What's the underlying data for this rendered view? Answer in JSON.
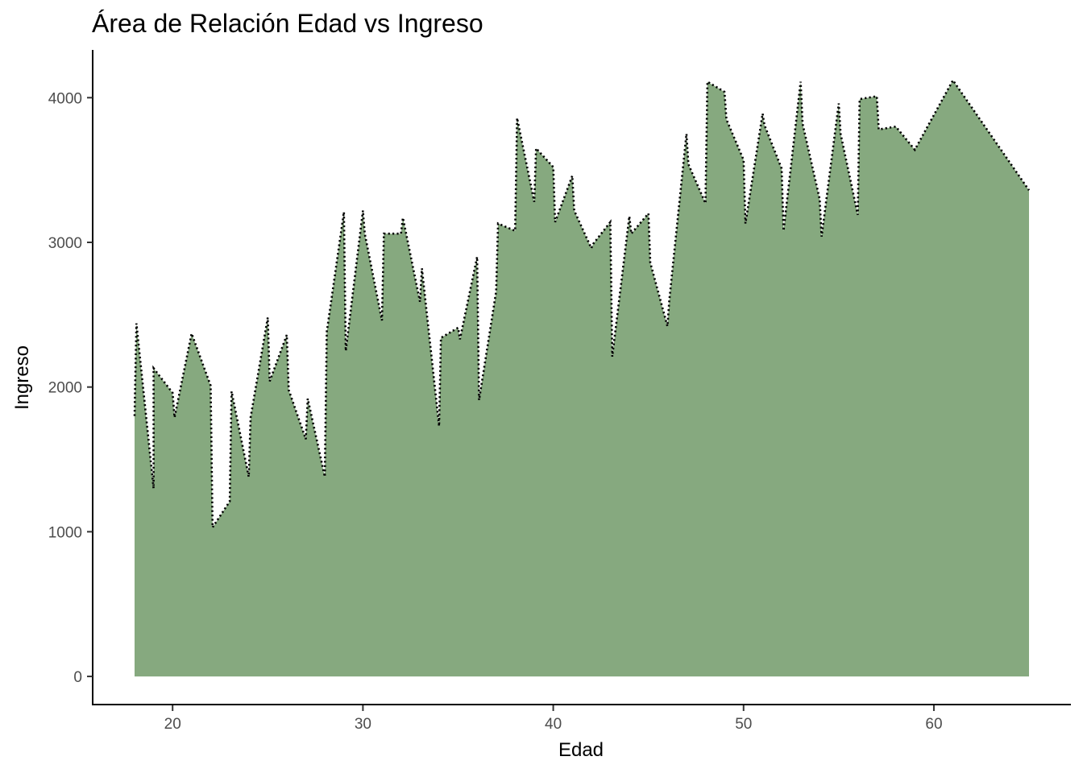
{
  "chart_data": {
    "type": "area",
    "title": "Área de Relación Edad vs Ingreso",
    "xlabel": "Edad",
    "ylabel": "Ingreso",
    "xlim": [
      15.8,
      67.2
    ],
    "ylim": [
      -200,
      4330
    ],
    "x_ticks": [
      20,
      30,
      40,
      50,
      60
    ],
    "y_ticks": [
      0,
      1000,
      2000,
      3000,
      4000
    ],
    "x_tick_labels": [
      "20",
      "30",
      "40",
      "50",
      "60"
    ],
    "y_tick_labels": [
      "0",
      "1000",
      "2000",
      "3000",
      "4000"
    ],
    "grid": false,
    "fill_color": "#86a97f",
    "line_color": "#000000",
    "line_style": "dotted",
    "series": [
      {
        "x": [
          18.0,
          18.1,
          19.0,
          19.0,
          20.0,
          20.1,
          21.0,
          22.0,
          22.1,
          23.0,
          23.1,
          24.0,
          24.1,
          25.0,
          25.1,
          26.0,
          26.1,
          27.0,
          27.1,
          28.0,
          28.1,
          29.0,
          29.1,
          30.0,
          30.1,
          31.0,
          31.1,
          32.0,
          32.1,
          33.0,
          33.1,
          34.0,
          34.1,
          35.0,
          35.1,
          36.0,
          36.1,
          37.0,
          37.1,
          38.0,
          38.1,
          39.0,
          39.1,
          40.0,
          40.1,
          41.0,
          41.1,
          42.0,
          42.1,
          43.0,
          43.1,
          44.0,
          44.1,
          45.0,
          45.1,
          46.0,
          46.1,
          47.0,
          47.1,
          48.0,
          48.1,
          49.0,
          49.1,
          50.0,
          50.1,
          51.0,
          51.1,
          52.0,
          52.1,
          53.0,
          53.1,
          54.0,
          54.1,
          55.0,
          55.1,
          56.0,
          56.1,
          57.0,
          57.1,
          58.0,
          59.0,
          61.0,
          65.0
        ],
        "y": [
          1800,
          2440,
          1300,
          2130,
          1960,
          1790,
          2370,
          2010,
          1030,
          1210,
          1970,
          1380,
          1790,
          2480,
          2040,
          2360,
          1980,
          1640,
          1920,
          1380,
          2380,
          3210,
          2250,
          3220,
          3060,
          2460,
          3060,
          3060,
          3170,
          2590,
          2820,
          1730,
          2340,
          2410,
          2330,
          2900,
          1910,
          2660,
          3130,
          3080,
          3860,
          3280,
          3650,
          3520,
          3140,
          3460,
          3220,
          2960,
          2990,
          3140,
          2210,
          3180,
          3060,
          3200,
          2860,
          2420,
          2600,
          3750,
          3540,
          3270,
          4110,
          4040,
          3850,
          3570,
          3130,
          3890,
          3810,
          3510,
          3080,
          4110,
          3820,
          3300,
          3040,
          3960,
          3750,
          3190,
          3990,
          4010,
          3780,
          3800,
          3640,
          4120,
          3360
        ]
      }
    ]
  }
}
